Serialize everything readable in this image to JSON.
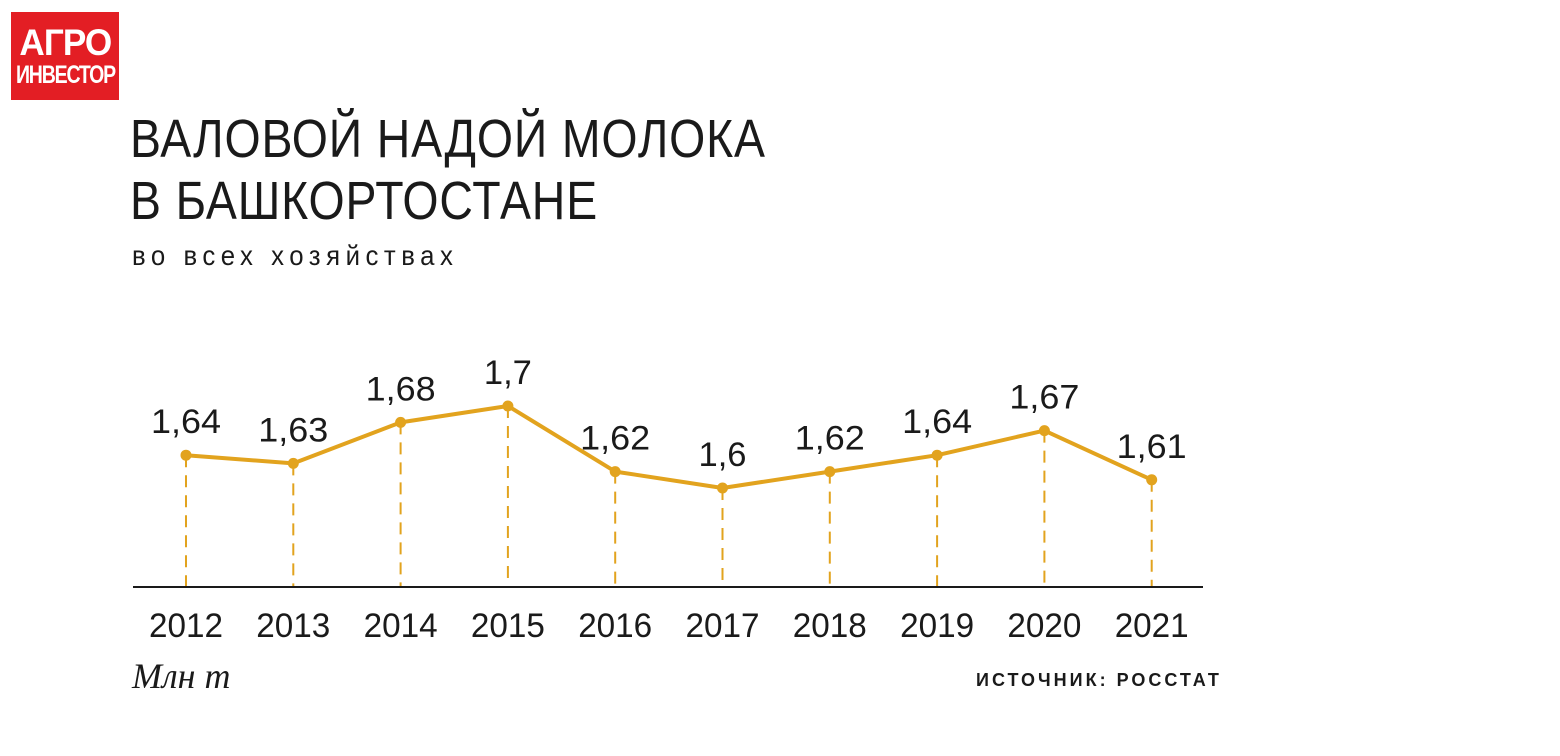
{
  "logo": {
    "line1": "АГРО",
    "line2": "ИНВЕСТОР"
  },
  "colors": {
    "line": "#e2a31e",
    "logo_bg": "#e31e24",
    "axis": "#1a1a1a"
  },
  "footer": {
    "unit": "Млн т",
    "source": "ИСТОЧНИК: РОССТАТ"
  },
  "chart_data": {
    "type": "line",
    "title": [
      "ВАЛОВОЙ НАДОЙ МОЛОКА",
      "В БАШКОРТОСТАНЕ"
    ],
    "subtitle": "во всех хозяйствах",
    "categories": [
      "2012",
      "2013",
      "2014",
      "2015",
      "2016",
      "2017",
      "2018",
      "2019",
      "2020",
      "2021"
    ],
    "values": [
      1.64,
      1.63,
      1.68,
      1.7,
      1.62,
      1.6,
      1.62,
      1.64,
      1.67,
      1.61
    ],
    "value_labels": [
      "1,64",
      "1,63",
      "1,68",
      "1,7",
      "1,62",
      "1,6",
      "1,62",
      "1,64",
      "1,67",
      "1,61"
    ],
    "ylabel": "Млн т",
    "grid": false,
    "legend": "none"
  }
}
